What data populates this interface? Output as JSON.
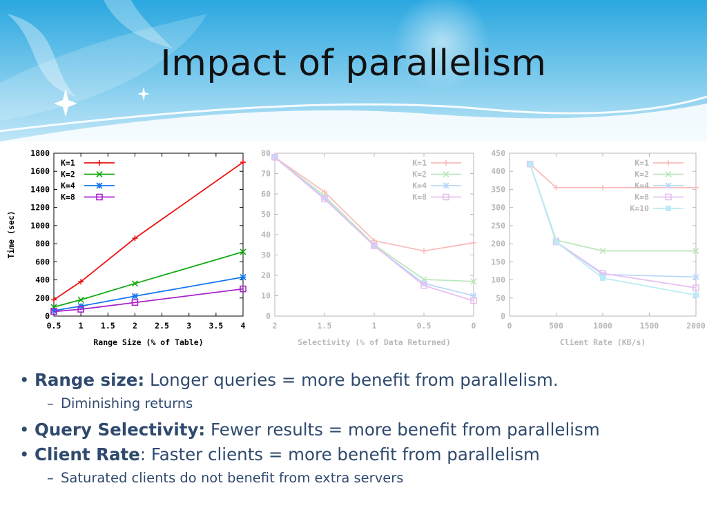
{
  "slide": {
    "title": "Impact of parallelism"
  },
  "banner": {
    "colors": {
      "top": "#2aa7e0",
      "bottom": "#bfe6f7",
      "wave": "#ffffff"
    }
  },
  "bullets": [
    {
      "keyword": "Range size:",
      "text": " Longer queries = more benefit from parallelism.",
      "sub": "Diminishing returns"
    },
    {
      "keyword": "Query Selectivity:",
      "text": " Fewer results = more benefit from parallelism"
    },
    {
      "keyword": "Client Rate",
      "text": ": Faster clients = more benefit from parallelism",
      "sub": "Saturated clients do not benefit from extra servers"
    }
  ],
  "chart_data": [
    {
      "type": "line",
      "xlabel": "Range Size (% of Table)",
      "ylabel": "Time (sec)",
      "xlim": [
        0.5,
        4
      ],
      "ylim": [
        0,
        1800
      ],
      "xticks": [
        "0.5",
        "1",
        "1.5",
        "2",
        "2.5",
        "3",
        "3.5",
        "4"
      ],
      "yticks": [
        "0",
        "200",
        "400",
        "600",
        "800",
        "1000",
        "1200",
        "1400",
        "1600",
        "1800"
      ],
      "x": [
        0.5,
        1,
        2,
        4
      ],
      "legend_position": "top-left",
      "series": [
        {
          "name": "K=1",
          "color": "#ee1111",
          "marker": "plus",
          "values": [
            180,
            380,
            860,
            1700
          ]
        },
        {
          "name": "K=2",
          "color": "#11aa11",
          "marker": "cross",
          "values": [
            100,
            180,
            360,
            710
          ]
        },
        {
          "name": "K=4",
          "color": "#1177ee",
          "marker": "star",
          "values": [
            60,
            110,
            220,
            430
          ]
        },
        {
          "name": "K=8",
          "color": "#aa22cc",
          "marker": "square",
          "values": [
            50,
            75,
            150,
            300
          ]
        }
      ]
    },
    {
      "type": "line",
      "faded": true,
      "xlabel": "Selectivity (% of Data Returned)",
      "ylabel": "",
      "xlim": [
        2,
        0
      ],
      "ylim": [
        0,
        80
      ],
      "xticks": [
        "2",
        "1.5",
        "1",
        "0.5",
        "0"
      ],
      "yticks": [
        "0",
        "10",
        "20",
        "30",
        "40",
        "50",
        "60",
        "70",
        "80"
      ],
      "x": [
        2,
        1.5,
        1,
        0.5,
        0
      ],
      "legend_position": "top-right",
      "series": [
        {
          "name": "K=1",
          "color": "#ee1111",
          "marker": "plus",
          "values": [
            78,
            61,
            37,
            32,
            36
          ]
        },
        {
          "name": "K=2",
          "color": "#11aa11",
          "marker": "cross",
          "values": [
            78,
            59,
            35,
            18,
            17
          ]
        },
        {
          "name": "K=4",
          "color": "#1177ee",
          "marker": "star",
          "values": [
            78,
            58,
            34.5,
            16,
            10
          ]
        },
        {
          "name": "K=8",
          "color": "#aa22cc",
          "marker": "square",
          "values": [
            78,
            57.5,
            34.5,
            15,
            7.5
          ]
        }
      ]
    },
    {
      "type": "line",
      "faded": true,
      "xlabel": "Client Rate (KB/s)",
      "ylabel": "",
      "xlim": [
        0,
        2000
      ],
      "ylim": [
        0,
        450
      ],
      "xticks": [
        "0",
        "500",
        "1000",
        "1500",
        "2000"
      ],
      "yticks": [
        "0",
        "50",
        "100",
        "150",
        "200",
        "250",
        "300",
        "350",
        "400",
        "450"
      ],
      "x": [
        220,
        500,
        1000,
        2000
      ],
      "legend_position": "top-right",
      "series": [
        {
          "name": "K=1",
          "color": "#ee1111",
          "marker": "plus",
          "values": [
            420,
            355,
            355,
            355
          ]
        },
        {
          "name": "K=2",
          "color": "#11aa11",
          "marker": "cross",
          "values": [
            420,
            210,
            180,
            180
          ]
        },
        {
          "name": "K=4",
          "color": "#1177ee",
          "marker": "star",
          "values": [
            420,
            205,
            115,
            108
          ]
        },
        {
          "name": "K=8",
          "color": "#aa22cc",
          "marker": "square",
          "values": [
            420,
            205,
            118,
            78
          ]
        },
        {
          "name": "K=10",
          "color": "#11bbdd",
          "marker": "fsquare",
          "values": [
            420,
            205,
            105,
            58
          ]
        }
      ]
    }
  ]
}
